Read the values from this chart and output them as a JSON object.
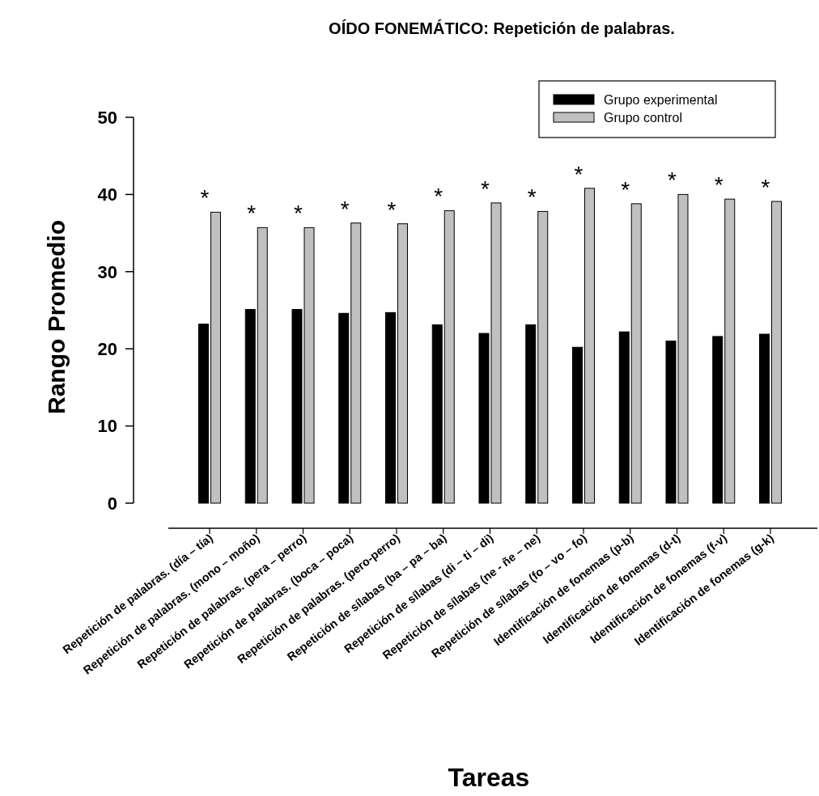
{
  "chart_data": {
    "type": "bar",
    "title": "OÍDO FONEMÁTICO: Repetición de palabras.",
    "xlabel": "Tareas",
    "ylabel": "Rango Promedio",
    "categories": [
      "Repetición de palabras. (día – tía)",
      "Repetición de palabras. (mono – moño)",
      "Repetición de palabras. (pera – perro)",
      "Repetición de palabras. (boca – poca)",
      "Repetición de palabras. (pero-perro)",
      "Repetición de sílabas (ba – pa – ba)",
      "Repetición de sílabas (di – ti – di)",
      "Repetición de sílabas (ne - ñe – ne)",
      "Repetición de sílabas (fo – vo – fo)",
      "Identificación de fonemas (p-b)",
      "Identificación de fonemas (d-t)",
      "Identificación de fonemas (f-v)",
      "Identificación de fonemas (g-k)"
    ],
    "series": [
      {
        "name": "Grupo experimental",
        "color": "#000000",
        "values": [
          23.2,
          25.1,
          25.1,
          24.6,
          24.7,
          23.1,
          22.0,
          23.1,
          20.2,
          22.2,
          21.0,
          21.6,
          21.9
        ]
      },
      {
        "name": "Grupo control",
        "color": "#c0c0c0",
        "values": [
          37.7,
          35.7,
          35.7,
          36.3,
          36.2,
          37.9,
          38.9,
          37.8,
          40.8,
          38.8,
          40.0,
          39.4,
          39.1
        ]
      }
    ],
    "ylim": [
      0,
      50
    ],
    "yticks": [
      0,
      10,
      20,
      30,
      40,
      50
    ],
    "legend": "top right",
    "grid": false,
    "annotations": [
      "*",
      "*",
      "*",
      "*",
      "*",
      "*",
      "*",
      "*",
      "*",
      "*",
      "*",
      "*",
      "*"
    ]
  }
}
